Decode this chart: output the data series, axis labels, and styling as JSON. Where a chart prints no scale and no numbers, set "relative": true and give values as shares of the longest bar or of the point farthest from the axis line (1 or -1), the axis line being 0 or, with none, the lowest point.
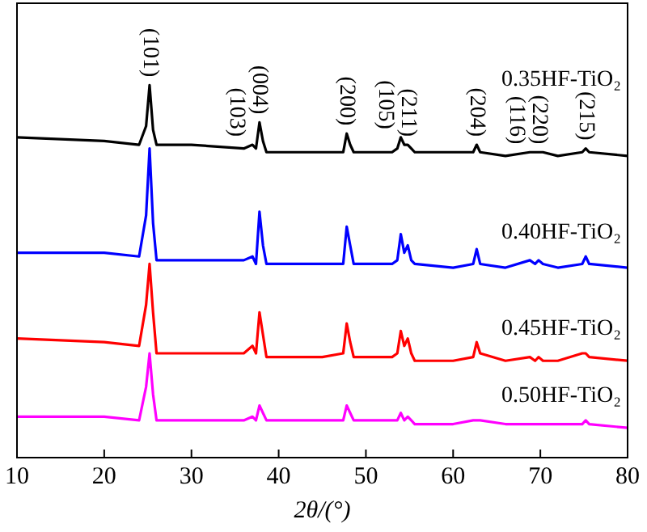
{
  "chart_data": {
    "type": "line",
    "xlabel": "2θ/(°)",
    "relative": true,
    "xlim": [
      10,
      80
    ],
    "xticks": [
      10,
      20,
      30,
      40,
      50,
      60,
      70,
      80
    ],
    "grid": false,
    "legend": false,
    "marker": "none",
    "line_style": "solid",
    "tick_labels": "x",
    "x": [
      10,
      20,
      24,
      24.8,
      25.2,
      25.6,
      26,
      30,
      36,
      37,
      37.4,
      37.8,
      38.2,
      38.6,
      45,
      47.4,
      47.8,
      48.2,
      48.6,
      53,
      53.6,
      54,
      54.4,
      54.8,
      55.2,
      55.6,
      60,
      62.3,
      62.7,
      63.1,
      66,
      68.8,
      69.4,
      69.8,
      70.3,
      72,
      74.8,
      75.2,
      75.6,
      80
    ],
    "series": [
      {
        "name": "0.35HF-TiO₂",
        "color": "#000000",
        "values": [
          0.86,
          0.85,
          0.84,
          0.89,
          1.0,
          0.88,
          0.84,
          0.84,
          0.83,
          0.84,
          0.83,
          0.9,
          0.85,
          0.82,
          0.82,
          0.82,
          0.87,
          0.84,
          0.82,
          0.82,
          0.83,
          0.86,
          0.84,
          0.84,
          0.83,
          0.82,
          0.82,
          0.82,
          0.84,
          0.82,
          0.81,
          0.82,
          0.82,
          0.82,
          0.82,
          0.81,
          0.82,
          0.83,
          0.82,
          0.81
        ]
      },
      {
        "name": "0.40HF-TiO₂",
        "color": "#0000ff",
        "values": [
          0.55,
          0.55,
          0.54,
          0.65,
          0.83,
          0.63,
          0.53,
          0.53,
          0.53,
          0.54,
          0.52,
          0.66,
          0.57,
          0.52,
          0.52,
          0.52,
          0.62,
          0.57,
          0.52,
          0.52,
          0.53,
          0.6,
          0.55,
          0.57,
          0.53,
          0.52,
          0.51,
          0.52,
          0.56,
          0.52,
          0.51,
          0.53,
          0.52,
          0.53,
          0.52,
          0.51,
          0.52,
          0.54,
          0.52,
          0.51
        ]
      },
      {
        "name": "0.45HF-TiO₂",
        "color": "#ff0000",
        "values": [
          0.32,
          0.31,
          0.3,
          0.41,
          0.52,
          0.39,
          0.28,
          0.28,
          0.28,
          0.3,
          0.28,
          0.39,
          0.33,
          0.27,
          0.27,
          0.28,
          0.36,
          0.31,
          0.27,
          0.27,
          0.28,
          0.34,
          0.3,
          0.32,
          0.28,
          0.26,
          0.26,
          0.27,
          0.31,
          0.28,
          0.26,
          0.27,
          0.26,
          0.27,
          0.26,
          0.26,
          0.28,
          0.28,
          0.27,
          0.26
        ]
      },
      {
        "name": "0.50HF-TiO₂",
        "color": "#ff00ff",
        "values": [
          0.11,
          0.11,
          0.1,
          0.19,
          0.28,
          0.17,
          0.1,
          0.1,
          0.1,
          0.11,
          0.1,
          0.14,
          0.12,
          0.1,
          0.1,
          0.1,
          0.14,
          0.12,
          0.1,
          0.1,
          0.1,
          0.12,
          0.1,
          0.11,
          0.1,
          0.09,
          0.09,
          0.1,
          0.1,
          0.1,
          0.09,
          0.09,
          0.09,
          0.09,
          0.09,
          0.09,
          0.09,
          0.1,
          0.09,
          0.08
        ]
      }
    ],
    "annotations": [
      {
        "text": "(101)",
        "x": 25.2,
        "y": 1.0
      },
      {
        "text": "(103)",
        "x": 37,
        "y": 0.84
      },
      {
        "text": "(004)",
        "x": 37.8,
        "y": 0.9
      },
      {
        "text": "(200)",
        "x": 47.8,
        "y": 0.87
      },
      {
        "text": "(105)",
        "x": 54,
        "y": 0.86
      },
      {
        "text": "(211)",
        "x": 54.8,
        "y": 0.84
      },
      {
        "text": "(204)",
        "x": 62.7,
        "y": 0.84
      },
      {
        "text": "(116)",
        "x": 68.8,
        "y": 0.82
      },
      {
        "text": "(220)",
        "x": 69.8,
        "y": 0.82
      },
      {
        "text": "(215)",
        "x": 75.2,
        "y": 0.83
      }
    ]
  }
}
